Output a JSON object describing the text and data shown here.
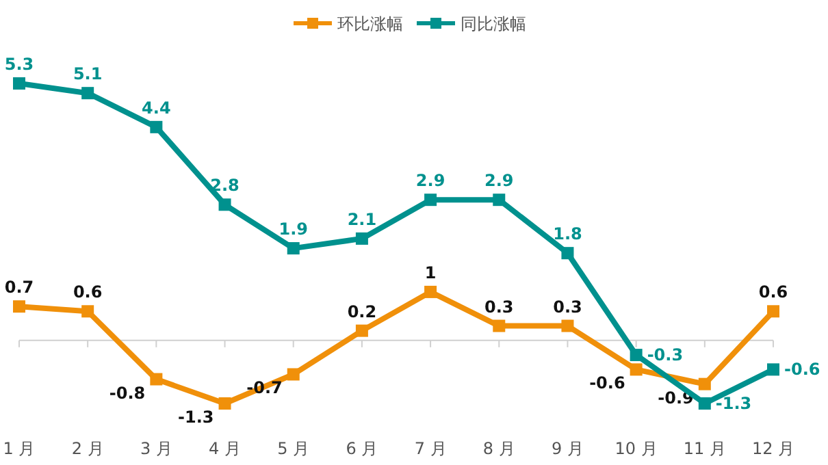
{
  "chart_data": {
    "type": "line",
    "categories": [
      "1 月",
      "2 月",
      "3 月",
      "4 月",
      "5 月",
      "6 月",
      "7 月",
      "8 月",
      "9 月",
      "10 月",
      "11 月",
      "12 月"
    ],
    "series": [
      {
        "name": "环比涨幅",
        "color": "#f0900a",
        "values": [
          0.7,
          0.6,
          -0.8,
          -1.3,
          -0.7,
          0.2,
          1,
          0.3,
          0.3,
          -0.6,
          -0.9,
          0.6
        ]
      },
      {
        "name": "同比涨幅",
        "color": "#00918e",
        "values": [
          5.3,
          5.1,
          4.4,
          2.8,
          1.9,
          2.1,
          2.9,
          2.9,
          1.8,
          -0.3,
          -1.3,
          -0.6
        ]
      }
    ],
    "data_labels": true,
    "marker": "square",
    "line_style": "solid",
    "legend": "top"
  }
}
